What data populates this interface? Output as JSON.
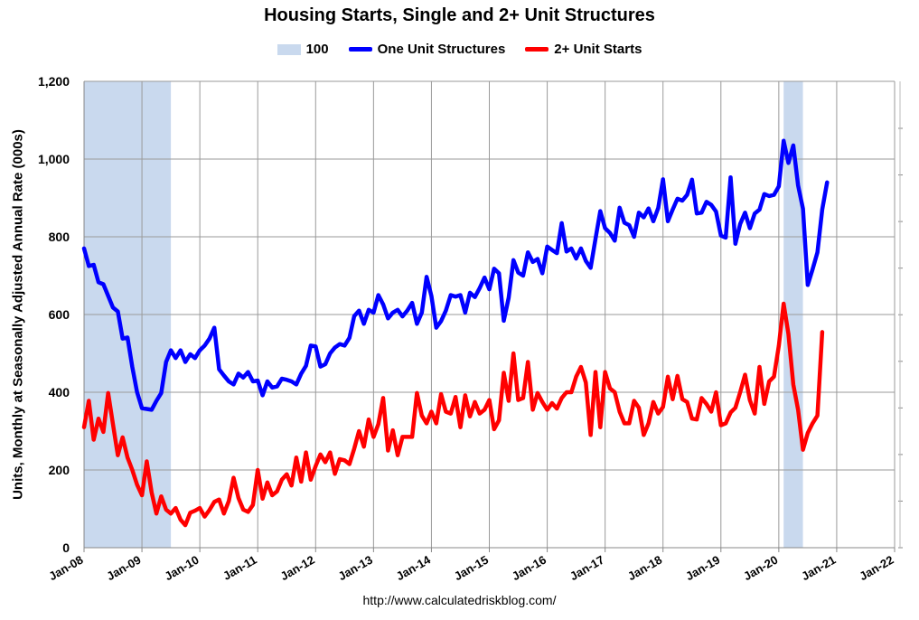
{
  "chart_data": {
    "type": "line",
    "title": "Housing Starts, Single and 2+ Unit Structures",
    "ylabel": "Units, Monthly at Seasonally Adjusted Annual Rate (000s)",
    "source": "http://www.calculatedriskblog.com/",
    "ylim": [
      0,
      1200
    ],
    "yticks": [
      0,
      200,
      400,
      600,
      800,
      1000,
      1200
    ],
    "ytick_labels": [
      "0",
      "200",
      "400",
      "600",
      "800",
      "1,000",
      "1,200"
    ],
    "xlim": [
      "2008-01",
      "2022-01"
    ],
    "xticks": [
      "Jan-08",
      "Jan-09",
      "Jan-10",
      "Jan-11",
      "Jan-12",
      "Jan-13",
      "Jan-14",
      "Jan-15",
      "Jan-16",
      "Jan-17",
      "Jan-18",
      "Jan-19",
      "Jan-20",
      "Jan-21",
      "Jan-22"
    ],
    "grid": true,
    "legend_position": "top",
    "recessions": {
      "name": "100",
      "color": "#c9d9ee",
      "periods": [
        [
          "2008-01",
          "2009-06"
        ],
        [
          "2020-02",
          "2020-05"
        ]
      ]
    },
    "series": [
      {
        "name": "One Unit Structures",
        "color": "#0000ff",
        "start": "2008-01",
        "values": [
          770,
          725,
          728,
          683,
          678,
          648,
          618,
          608,
          538,
          541,
          465,
          400,
          359,
          357,
          355,
          378,
          398,
          478,
          508,
          488,
          508,
          478,
          498,
          488,
          508,
          520,
          538,
          566,
          459,
          443,
          428,
          420,
          448,
          438,
          452,
          428,
          430,
          392,
          428,
          412,
          415,
          435,
          432,
          428,
          420,
          448,
          468,
          520,
          518,
          466,
          472,
          500,
          515,
          524,
          520,
          540,
          596,
          610,
          576,
          612,
          605,
          650,
          626,
          590,
          605,
          612,
          595,
          610,
          630,
          576,
          605,
          697,
          648,
          566,
          583,
          610,
          650,
          646,
          650,
          605,
          656,
          645,
          668,
          695,
          665,
          718,
          706,
          584,
          643,
          740,
          708,
          700,
          760,
          735,
          743,
          706,
          775,
          766,
          758,
          835,
          762,
          770,
          744,
          770,
          738,
          720,
          795,
          866,
          822,
          810,
          790,
          875,
          836,
          830,
          800,
          862,
          850,
          873,
          840,
          874,
          948,
          840,
          870,
          898,
          893,
          908,
          947,
          860,
          862,
          890,
          882,
          865,
          803,
          798,
          953,
          782,
          833,
          862,
          822,
          860,
          870,
          910,
          905,
          908,
          930,
          1047,
          990,
          1035,
          932,
          872,
          676,
          716,
          760,
          870,
          940
        ]
      },
      {
        "name": "2+ Unit Starts",
        "color": "#ff0000",
        "start": "2008-01",
        "values": [
          310,
          378,
          278,
          332,
          298,
          398,
          318,
          238,
          284,
          232,
          200,
          162,
          135,
          222,
          142,
          88,
          132,
          98,
          88,
          102,
          72,
          58,
          90,
          95,
          102,
          80,
          97,
          118,
          124,
          88,
          120,
          180,
          128,
          98,
          92,
          110,
          200,
          126,
          168,
          135,
          145,
          175,
          189,
          160,
          232,
          170,
          245,
          175,
          210,
          240,
          220,
          245,
          190,
          228,
          225,
          215,
          255,
          300,
          260,
          330,
          285,
          318,
          385,
          250,
          302,
          238,
          285,
          285,
          285,
          398,
          340,
          320,
          350,
          320,
          395,
          350,
          345,
          388,
          310,
          392,
          338,
          375,
          345,
          355,
          380,
          305,
          328,
          450,
          378,
          500,
          380,
          385,
          478,
          355,
          398,
          375,
          355,
          372,
          358,
          385,
          400,
          400,
          440,
          465,
          425,
          290,
          452,
          310,
          452,
          410,
          400,
          350,
          320,
          320,
          378,
          360,
          290,
          320,
          375,
          345,
          362,
          440,
          382,
          442,
          382,
          375,
          332,
          330,
          385,
          370,
          350,
          400,
          315,
          320,
          348,
          360,
          400,
          445,
          380,
          345,
          465,
          370,
          428,
          440,
          520,
          628,
          550,
          420,
          355,
          252,
          295,
          320,
          340,
          555
        ]
      }
    ]
  }
}
